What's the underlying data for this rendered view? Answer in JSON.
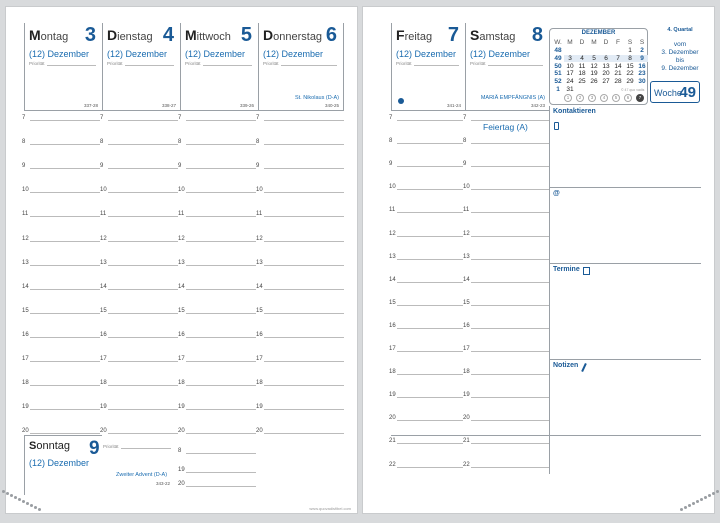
{
  "left_page": {
    "days": [
      {
        "name_initial": "M",
        "name_rest": "ontag",
        "number": "3",
        "week_label": "(12) Dezember",
        "priority_label": "Priorität",
        "day_code": "337-28"
      },
      {
        "name_initial": "D",
        "name_rest": "ienstag",
        "number": "4",
        "week_label": "(12) Dezember",
        "priority_label": "Priorität",
        "day_code": "338-27"
      },
      {
        "name_initial": "M",
        "name_rest": "ittwoch",
        "number": "5",
        "week_label": "(12) Dezember",
        "priority_label": "Priorität",
        "day_code": "339-26"
      },
      {
        "name_initial": "D",
        "name_rest": "onnerstag",
        "number": "6",
        "week_label": "(12) Dezember",
        "priority_label": "Priorität",
        "day_code": "340-25",
        "holiday": "St. Nikolaus (D-A)"
      }
    ],
    "hours": [
      "7",
      "8",
      "9",
      "10",
      "11",
      "12",
      "13",
      "14",
      "15",
      "16",
      "17",
      "18",
      "19",
      "20"
    ],
    "sunday": {
      "name_initial": "S",
      "name_rest": "onntag",
      "number": "9",
      "week_label": "(12) Dezember",
      "priority_label": "Priorität",
      "holiday": "Zweiter Advent (D-A)",
      "day_code": "343-22",
      "hours": [
        "8",
        "19",
        "20"
      ]
    },
    "website": "www.quovadisfibel.com"
  },
  "right_page": {
    "days": [
      {
        "name_initial": "F",
        "name_rest": "reitag",
        "number": "7",
        "week_label": "(12) Dezember",
        "priority_label": "Priorität",
        "day_code": "341-24"
      },
      {
        "name_initial": "S",
        "name_rest": "amstag",
        "number": "8",
        "week_label": "(12) Dezember",
        "priority_label": "Priorität",
        "day_code": "342-23",
        "holiday": "MARIÄ EMPFÄNGNIS (A)",
        "feiertag": "Feiertag (A)"
      }
    ],
    "hours": [
      "7",
      "8",
      "9",
      "10",
      "11",
      "12",
      "13",
      "14",
      "15",
      "16",
      "17",
      "18",
      "19",
      "20",
      "21",
      "22"
    ],
    "mini_calendar": {
      "month": "DEZEMBER",
      "headers": [
        "W.",
        "M",
        "D",
        "M",
        "D",
        "F",
        "S",
        "S"
      ],
      "rows": [
        [
          "48",
          "",
          "",
          "",
          "",
          "",
          "1",
          "2"
        ],
        [
          "49",
          "3",
          "4",
          "5",
          "6",
          "7",
          "8",
          "9"
        ],
        [
          "50",
          "10",
          "11",
          "12",
          "13",
          "14",
          "15",
          "16"
        ],
        [
          "51",
          "17",
          "18",
          "19",
          "20",
          "21",
          "22",
          "23"
        ],
        [
          "52",
          "24",
          "25",
          "26",
          "27",
          "28",
          "29",
          "30"
        ],
        [
          "1",
          "31",
          "",
          "",
          "",
          "",
          "",
          ""
        ]
      ],
      "footer_note": "© 47 quo vadis",
      "circles": [
        "1",
        "2",
        "3",
        "4",
        "5",
        "6",
        "7"
      ]
    },
    "quarter": "4. Quartal",
    "range": [
      "vom",
      "3. Dezember",
      "bis",
      "9. Dezember"
    ],
    "week_word": "Woche",
    "week_number": "49",
    "sections": {
      "contacts": "Kontaktieren",
      "at": "@",
      "termine": "Termine",
      "notizen": "Notizen"
    }
  },
  "colors": {
    "accent": "#1a5a96",
    "light_accent": "#1a6cb0",
    "line": "#bbbbbb"
  }
}
